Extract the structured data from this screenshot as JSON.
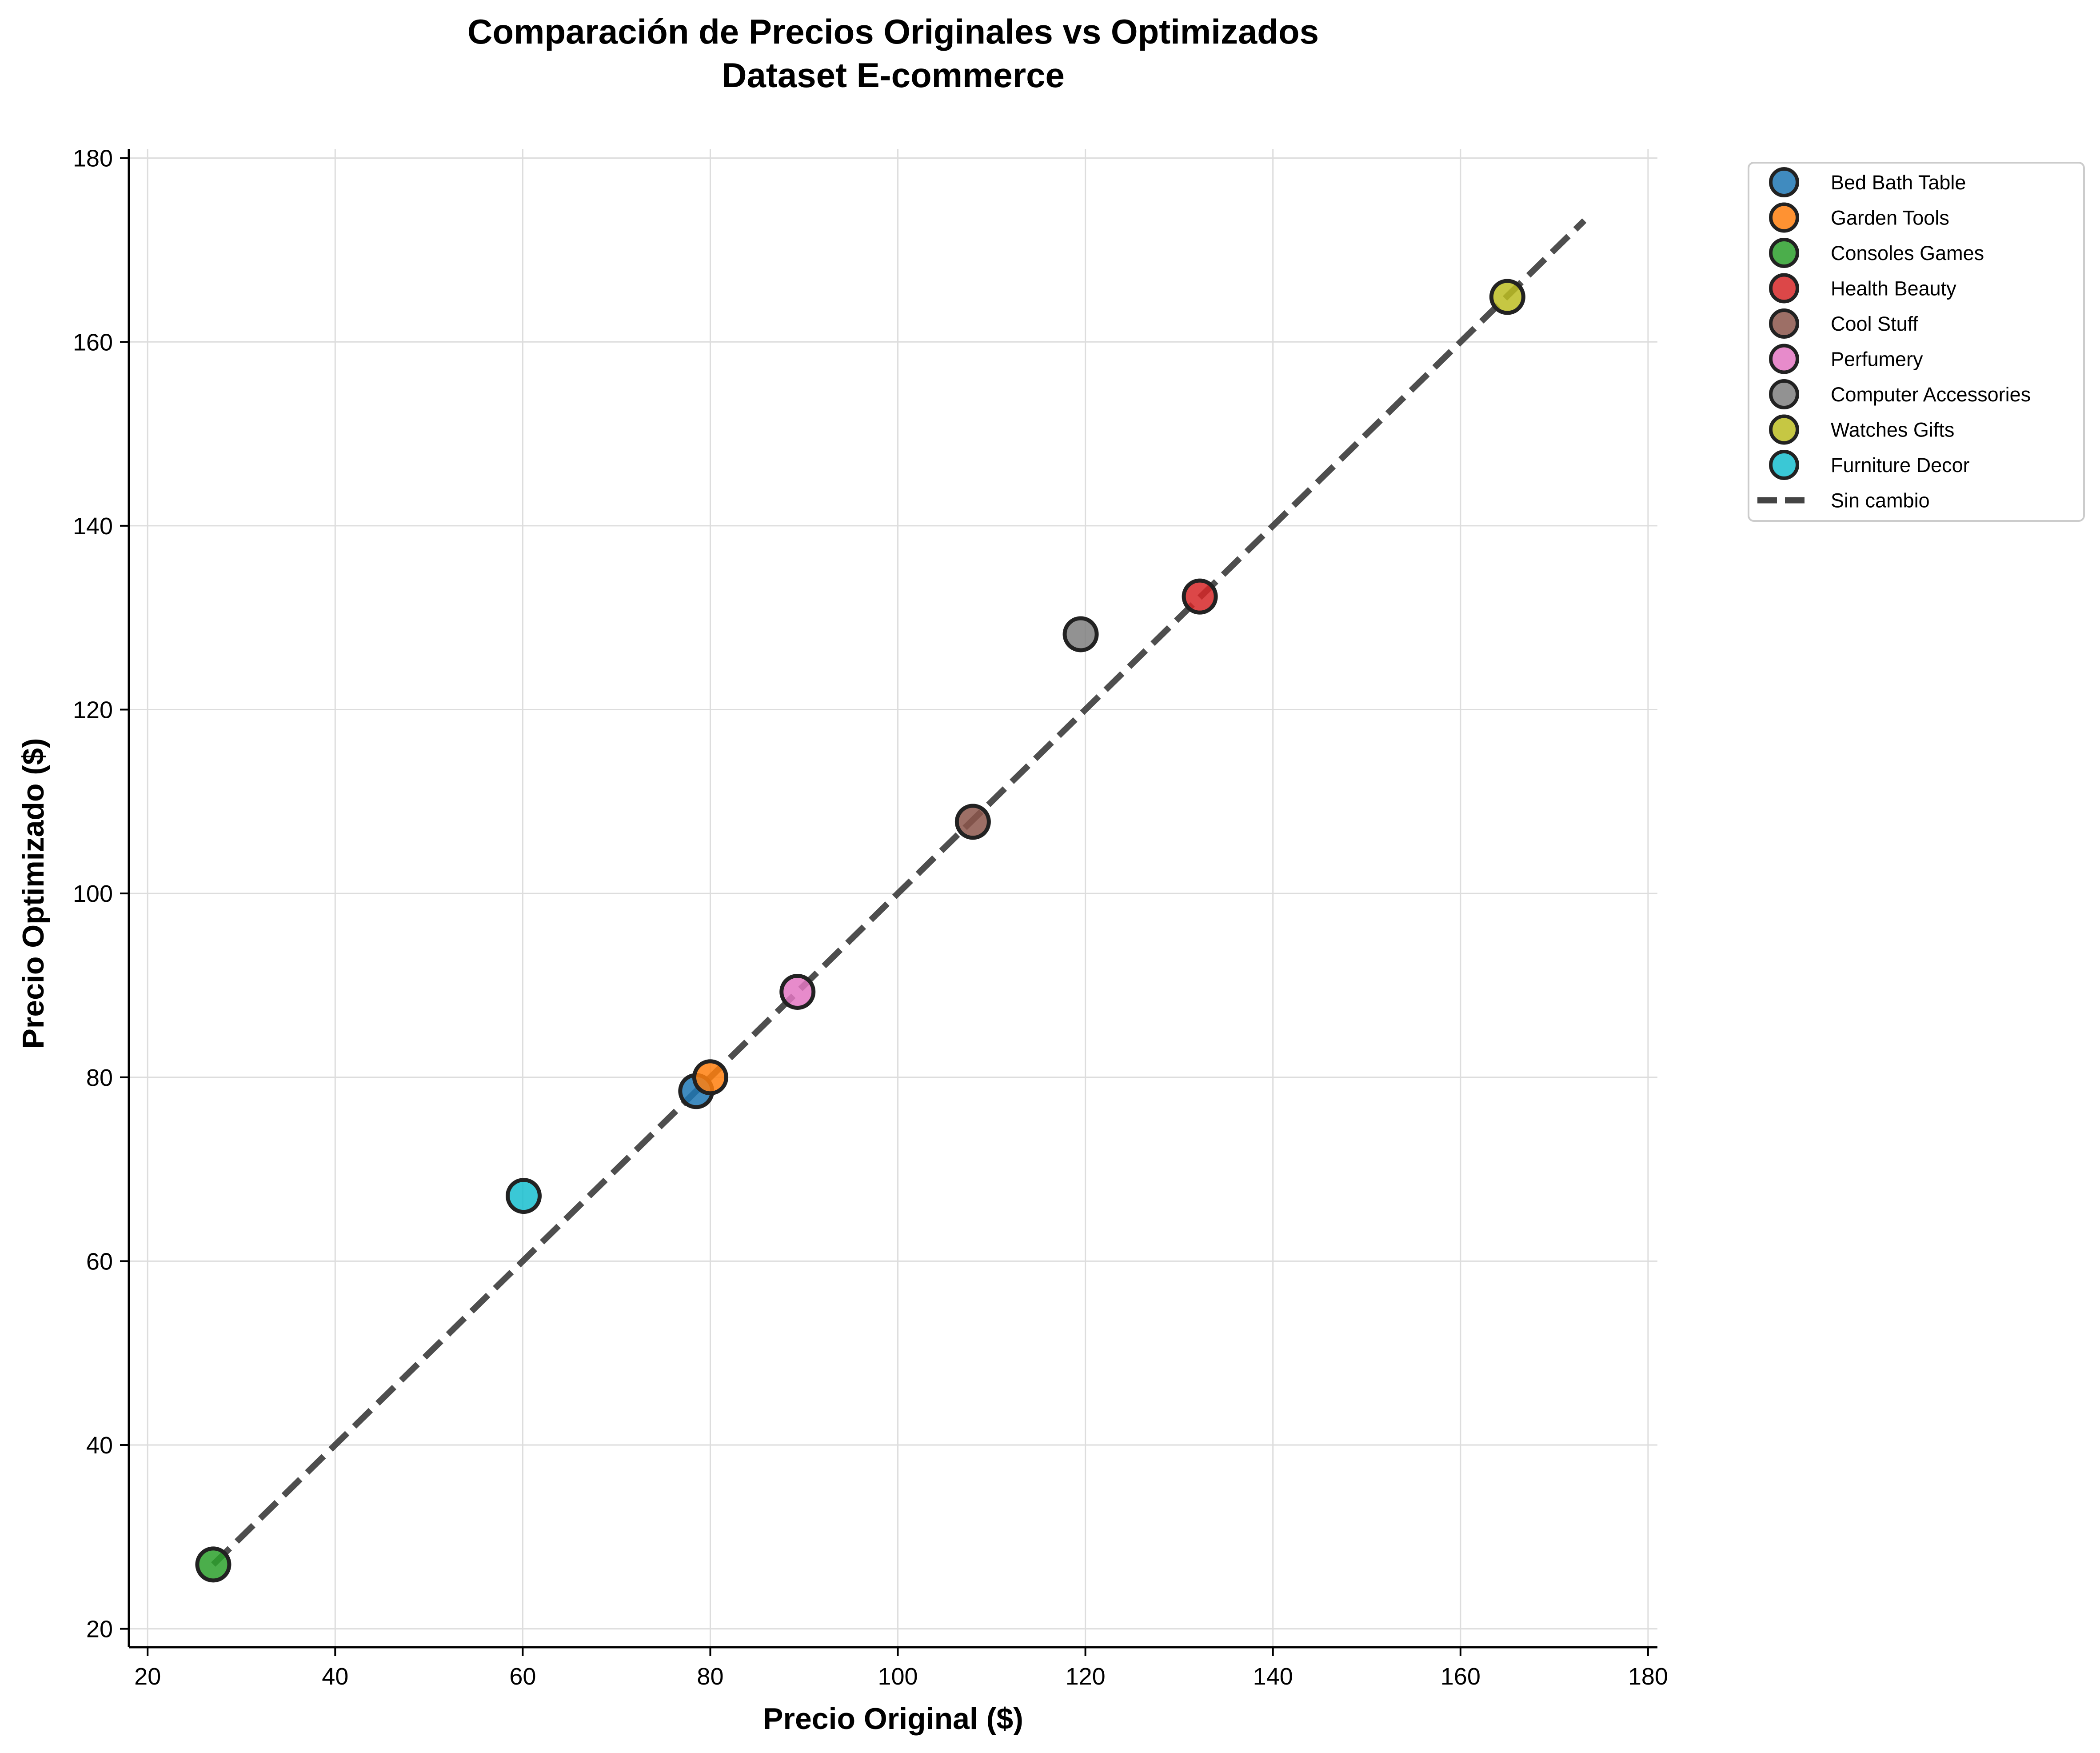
{
  "chart_data": {
    "type": "scatter",
    "title": "Comparación de Precios Originales vs Optimizados",
    "subtitle": "Dataset E-commerce",
    "xlabel": "Precio Original ($)",
    "ylabel": "Precio Optimizado ($)",
    "xlim": [
      18,
      181
    ],
    "ylim": [
      18,
      181
    ],
    "xticks": [
      20,
      40,
      60,
      80,
      100,
      120,
      140,
      160,
      180
    ],
    "yticks": [
      20,
      40,
      60,
      80,
      100,
      120,
      140,
      160,
      180
    ],
    "grid": true,
    "legend_position": "outside-top-right",
    "series": [
      {
        "name": "Bed Bath Table",
        "color": "#1f77b4",
        "points": [
          {
            "x": 78.5,
            "y": 78.5
          }
        ]
      },
      {
        "name": "Garden Tools",
        "color": "#ff7f0e",
        "points": [
          {
            "x": 80,
            "y": 80
          }
        ]
      },
      {
        "name": "Consoles Games",
        "color": "#2ca02c",
        "points": [
          {
            "x": 27,
            "y": 27
          }
        ]
      },
      {
        "name": "Health Beauty",
        "color": "#d62728",
        "points": [
          {
            "x": 132.2,
            "y": 132.3
          }
        ]
      },
      {
        "name": "Cool Stuff",
        "color": "#8c564b",
        "points": [
          {
            "x": 108,
            "y": 107.8
          }
        ]
      },
      {
        "name": "Perfumery",
        "color": "#e377c2",
        "points": [
          {
            "x": 89.3,
            "y": 89.3
          }
        ]
      },
      {
        "name": "Computer Accessories",
        "color": "#7f7f7f",
        "points": [
          {
            "x": 119.5,
            "y": 128.2
          }
        ]
      },
      {
        "name": "Watches Gifts",
        "color": "#bcbd22",
        "points": [
          {
            "x": 165,
            "y": 164.9
          }
        ]
      },
      {
        "name": "Furniture Decor",
        "color": "#17becf",
        "points": [
          {
            "x": 60.1,
            "y": 67.1
          }
        ]
      }
    ],
    "reference_line": {
      "name": "Sin cambio",
      "style": "dashed",
      "color": "#444444",
      "from": 27,
      "to": 173.2
    }
  }
}
